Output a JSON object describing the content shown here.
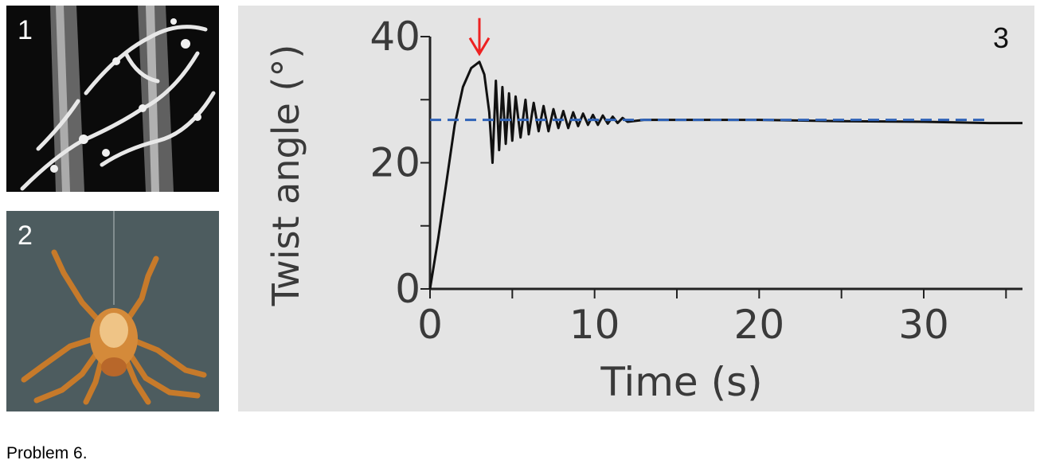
{
  "panels": {
    "p1_label": "1",
    "p2_label": "2",
    "p3_label": "3"
  },
  "caption": "Problem 6.",
  "colors": {
    "trace": "#111111",
    "equilibrium": "#2f63b8",
    "arrow": "#ee2222",
    "panel_bg": "#e4e4e4"
  },
  "chart_data": {
    "type": "line",
    "title": "",
    "xlabel": "Time (s)",
    "ylabel": "Twist angle (°)",
    "xlim": [
      0,
      36
    ],
    "ylim": [
      0,
      40
    ],
    "xticks": [
      0,
      10,
      20,
      30
    ],
    "yticks": [
      0,
      20,
      40
    ],
    "grid": false,
    "series": [
      {
        "style": "solid",
        "x": [
          0,
          0.5,
          1,
          1.5,
          2,
          2.5,
          3,
          3.3,
          3.6,
          3.8,
          4,
          4.2,
          4.4,
          4.6,
          4.8,
          5.0,
          5.2,
          5.5,
          5.8,
          6.0,
          6.3,
          6.6,
          6.9,
          7.2,
          7.5,
          7.8,
          8.1,
          8.4,
          8.7,
          9.0,
          9.3,
          9.6,
          9.9,
          10.2,
          10.5,
          10.8,
          11.1,
          11.4,
          11.7,
          12,
          13,
          15,
          20,
          25,
          30,
          34,
          36
        ],
        "y": [
          0,
          8,
          17,
          26,
          32,
          35,
          36,
          34,
          28,
          20,
          33,
          22,
          32,
          23,
          31,
          23.5,
          30.5,
          24,
          30,
          24.5,
          29.5,
          25,
          29,
          25,
          28.5,
          25.5,
          28.2,
          25.5,
          28,
          25.8,
          27.8,
          26,
          27.6,
          26,
          27.5,
          26.2,
          27.3,
          26.3,
          27.1,
          26.5,
          26.8,
          26.8,
          26.8,
          26.6,
          26.5,
          26.3,
          26.3
        ]
      },
      {
        "style": "dashed",
        "x": [
          0,
          34
        ],
        "y": [
          26.8,
          26.8
        ]
      }
    ],
    "annotations": [
      {
        "type": "arrow",
        "x": 3,
        "y": 36,
        "color": "red"
      }
    ]
  }
}
